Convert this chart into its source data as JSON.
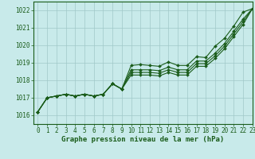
{
  "title": "Graphe pression niveau de la mer (hPa)",
  "bg_color": "#c8eaea",
  "line_color": "#1a5c1a",
  "grid_color": "#a0c8c8",
  "xlim": [
    -0.5,
    22.5
  ],
  "ylim": [
    1015.5,
    1022.5
  ],
  "yticks": [
    1016,
    1017,
    1018,
    1019,
    1020,
    1021,
    1022
  ],
  "xticks": [
    0,
    1,
    2,
    3,
    4,
    5,
    6,
    7,
    8,
    9,
    10,
    11,
    12,
    13,
    14,
    15,
    16,
    17,
    18,
    19,
    20,
    21,
    22,
    23
  ],
  "lines": [
    [
      1016.2,
      1017.0,
      1017.1,
      1017.2,
      1017.1,
      1017.2,
      1017.1,
      1017.2,
      1017.8,
      1017.5,
      1018.85,
      1018.9,
      1018.85,
      1018.8,
      1019.05,
      1018.85,
      1018.85,
      1019.35,
      1019.3,
      1019.95,
      1020.4,
      1021.1,
      1021.9,
      1022.1
    ],
    [
      1016.2,
      1017.0,
      1017.1,
      1017.2,
      1017.1,
      1017.2,
      1017.1,
      1017.2,
      1017.8,
      1017.5,
      1018.6,
      1018.6,
      1018.6,
      1018.55,
      1018.75,
      1018.6,
      1018.6,
      1019.1,
      1019.1,
      1019.55,
      1020.1,
      1020.8,
      1021.5,
      1022.1
    ],
    [
      1016.2,
      1017.0,
      1017.1,
      1017.2,
      1017.1,
      1017.2,
      1017.1,
      1017.2,
      1017.8,
      1017.5,
      1018.45,
      1018.45,
      1018.45,
      1018.4,
      1018.6,
      1018.45,
      1018.45,
      1018.95,
      1018.95,
      1019.4,
      1019.95,
      1020.65,
      1021.35,
      1022.1
    ],
    [
      1016.2,
      1017.0,
      1017.1,
      1017.2,
      1017.1,
      1017.2,
      1017.1,
      1017.2,
      1017.8,
      1017.5,
      1018.3,
      1018.3,
      1018.3,
      1018.25,
      1018.45,
      1018.3,
      1018.3,
      1018.8,
      1018.8,
      1019.25,
      1019.8,
      1020.5,
      1021.2,
      1022.1
    ]
  ],
  "marker": "D",
  "markersize": 2.0,
  "linewidth": 0.8,
  "tick_fontsize": 5.5,
  "title_fontsize": 6.5
}
